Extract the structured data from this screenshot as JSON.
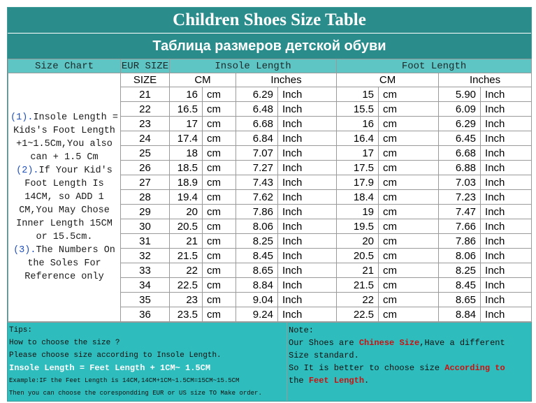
{
  "title": "Children Shoes Size Table",
  "subtitle": "Таблица размеров детской обуви",
  "headers": {
    "size_chart": "Size Chart",
    "eur_size": "EUR SIZE",
    "insole_length": "Insole Length",
    "foot_length": "Foot Length",
    "size": "SIZE",
    "cm": "CM",
    "inches": "Inches",
    "foot_cm": "CM",
    "foot_inches": "Inches"
  },
  "units": {
    "cm": "cm",
    "inch": "Inch"
  },
  "left_notes": [
    {
      "mark": "(1).",
      "text": "Insole Length = Kids's Foot Length +1~1.5Cm,You also can + 1.5 Cm"
    },
    {
      "mark": "(2).",
      "text": "If Your Kid's Foot Length Is 14CM,  so ADD 1 CM,You May Chose Inner Length 15CM or 15.5cm."
    },
    {
      "mark": "(3).",
      "text": "The Numbers On the Soles For Reference only"
    }
  ],
  "rows": [
    {
      "size": "21",
      "insole_cm": "16",
      "insole_in": "6.29",
      "foot_cm": "15",
      "foot_in": "5.90"
    },
    {
      "size": "22",
      "insole_cm": "16.5",
      "insole_in": "6.48",
      "foot_cm": "15.5",
      "foot_in": "6.09"
    },
    {
      "size": "23",
      "insole_cm": "17",
      "insole_in": "6.68",
      "foot_cm": "16",
      "foot_in": "6.29"
    },
    {
      "size": "24",
      "insole_cm": "17.4",
      "insole_in": "6.84",
      "foot_cm": "16.4",
      "foot_in": "6.45"
    },
    {
      "size": "25",
      "insole_cm": "18",
      "insole_in": "7.07",
      "foot_cm": "17",
      "foot_in": "6.68"
    },
    {
      "size": "26",
      "insole_cm": "18.5",
      "insole_in": "7.27",
      "foot_cm": "17.5",
      "foot_in": "6.88"
    },
    {
      "size": "27",
      "insole_cm": "18.9",
      "insole_in": "7.43",
      "foot_cm": "17.9",
      "foot_in": "7.03"
    },
    {
      "size": "28",
      "insole_cm": "19.4",
      "insole_in": "7.62",
      "foot_cm": "18.4",
      "foot_in": "7.23"
    },
    {
      "size": "29",
      "insole_cm": "20",
      "insole_in": "7.86",
      "foot_cm": "19",
      "foot_in": "7.47"
    },
    {
      "size": "30",
      "insole_cm": "20.5",
      "insole_in": "8.06",
      "foot_cm": "19.5",
      "foot_in": "7.66"
    },
    {
      "size": "31",
      "insole_cm": "21",
      "insole_in": "8.25",
      "foot_cm": "20",
      "foot_in": "7.86"
    },
    {
      "size": "32",
      "insole_cm": "21.5",
      "insole_in": "8.45",
      "foot_cm": "20.5",
      "foot_in": "8.06"
    },
    {
      "size": "33",
      "insole_cm": "22",
      "insole_in": "8.65",
      "foot_cm": "21",
      "foot_in": "8.25"
    },
    {
      "size": "34",
      "insole_cm": "22.5",
      "insole_in": "8.84",
      "foot_cm": "21.5",
      "foot_in": "8.45"
    },
    {
      "size": "35",
      "insole_cm": "23",
      "insole_in": "9.04",
      "foot_cm": "22",
      "foot_in": "8.65"
    },
    {
      "size": "36",
      "insole_cm": "23.5",
      "insole_in": "9.24",
      "foot_cm": "22.5",
      "foot_in": "8.84"
    }
  ],
  "tips": {
    "label": "Tips:",
    "line1": "How to choose the size ?",
    "line2": "Please choose size according to Insole Length.",
    "formula": "Insole Length = Feet Length + 1CM~ 1.5CM",
    "example": "Example:IF the Feet Length is 14CM,14CM+1CM~1.5CM=15CM~15.5CM",
    "last": "Then you can choose the corespondding EUR or US size TO Make order."
  },
  "note": {
    "label": "Note:",
    "l1_a": "Our Shoes are ",
    "l1_red": "Chinese Size",
    "l1_b": ",Have a different",
    "l2": "Size standard.",
    "l3_a": "So It is better to choose size ",
    "l3_red": "According to",
    "l4_a": "the ",
    "l4_red": "Feet Length",
    "l4_b": "."
  },
  "colors": {
    "header_bg": "#2b8c8c",
    "subheader_bg": "#5ec4c4",
    "bottom_bg": "#2fbcbc",
    "unit_red": "#cc0000"
  }
}
